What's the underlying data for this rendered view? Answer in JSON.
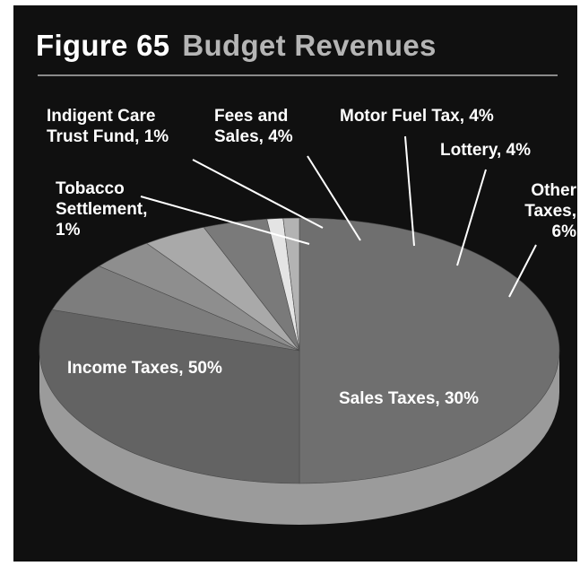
{
  "chart_data": {
    "type": "pie",
    "title": "Figure 65",
    "subtitle": "Budget Revenues",
    "slices": [
      {
        "label": "Income Taxes",
        "value": 50,
        "color": "#6f6f6f",
        "lines": [
          "Income Taxes, 50%"
        ]
      },
      {
        "label": "Sales Taxes",
        "value": 30,
        "color": "#636363",
        "lines": [
          "Sales Taxes, 30%"
        ]
      },
      {
        "label": "Other Taxes",
        "value": 6,
        "color": "#7d7d7d",
        "lines": [
          "Other",
          "Taxes,",
          "6%"
        ]
      },
      {
        "label": "Lottery",
        "value": 4,
        "color": "#8e8e8e",
        "lines": [
          "Lottery, 4%"
        ]
      },
      {
        "label": "Motor Fuel Tax",
        "value": 4,
        "color": "#a9a9a9",
        "lines": [
          "Motor Fuel Tax, 4%"
        ]
      },
      {
        "label": "Fees and Sales",
        "value": 4,
        "color": "#7a7a7a",
        "lines": [
          "Fees and",
          "Sales, 4%"
        ]
      },
      {
        "label": "Indigent Care Trust Fund",
        "value": 1,
        "color": "#e4e4e4",
        "lines": [
          "Indigent Care",
          "Trust Fund, 1%"
        ]
      },
      {
        "label": "Tobacco Settlement",
        "value": 1,
        "color": "#b3b3b3",
        "lines": [
          "Tobacco",
          "Settlement,",
          "1%"
        ]
      }
    ],
    "side_color": "#9b9b9b",
    "background": "#101010"
  }
}
